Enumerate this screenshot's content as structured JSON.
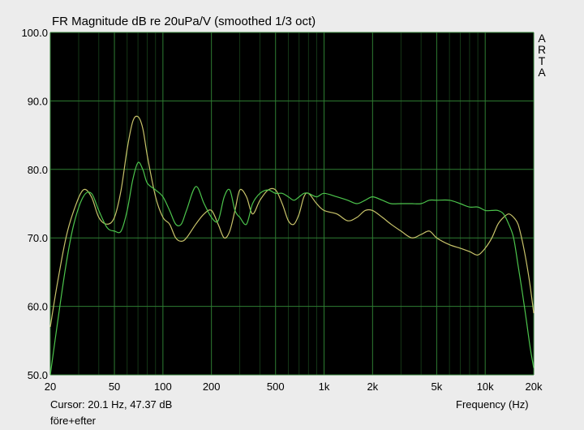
{
  "chart_data": {
    "type": "line",
    "title": "FR Magnitude dB re 20uPa/V (smoothed 1/3 oct)",
    "xlabel": "Frequency (Hz)",
    "ylabel": "",
    "xscale": "log",
    "xlim": [
      20,
      20000
    ],
    "ylim": [
      50,
      100
    ],
    "grid": true,
    "background": "#000000",
    "grid_color": "#2e7d32",
    "y_ticks": [
      {
        "value": 50,
        "label": "50.0"
      },
      {
        "value": 60,
        "label": "60.0"
      },
      {
        "value": 70,
        "label": "70.0"
      },
      {
        "value": 80,
        "label": "80.0"
      },
      {
        "value": 90,
        "label": "90.0"
      },
      {
        "value": 100,
        "label": "100.0"
      }
    ],
    "x_ticks": [
      {
        "value": 20,
        "label": "20"
      },
      {
        "value": 50,
        "label": "50"
      },
      {
        "value": 100,
        "label": "100"
      },
      {
        "value": 200,
        "label": "200"
      },
      {
        "value": 500,
        "label": "500"
      },
      {
        "value": 1000,
        "label": "1k"
      },
      {
        "value": 2000,
        "label": "2k"
      },
      {
        "value": 5000,
        "label": "5k"
      },
      {
        "value": 10000,
        "label": "10k"
      },
      {
        "value": 20000,
        "label": "20k"
      }
    ],
    "series": [
      {
        "color": "#c8c36a",
        "x": [
          20,
          22,
          25,
          28,
          32,
          36,
          40,
          45,
          50,
          55,
          60,
          65,
          70,
          75,
          80,
          90,
          100,
          110,
          120,
          130,
          140,
          160,
          180,
          200,
          220,
          240,
          260,
          280,
          300,
          330,
          360,
          400,
          450,
          500,
          550,
          600,
          650,
          700,
          750,
          800,
          900,
          1000,
          1200,
          1400,
          1600,
          1800,
          2000,
          2300,
          2600,
          3000,
          3500,
          4000,
          4500,
          5000,
          6000,
          7000,
          8000,
          9000,
          10000,
          11000,
          12000,
          13000,
          14000,
          15000,
          16000,
          17000,
          18000,
          19000,
          20000
        ],
        "y": [
          57,
          63,
          70,
          74,
          77,
          76,
          73,
          72,
          73,
          77,
          83,
          87,
          87.7,
          86,
          82,
          76,
          73,
          72,
          70,
          69.5,
          70,
          72,
          73.5,
          74,
          72,
          70,
          71,
          74,
          77,
          76,
          73.5,
          75.5,
          77,
          77,
          75,
          72.5,
          72,
          73.5,
          76,
          76.5,
          75,
          74,
          73.5,
          72.5,
          73,
          74,
          74,
          73,
          72,
          71,
          70,
          70.5,
          71,
          70,
          69,
          68.5,
          68,
          67.5,
          68.5,
          70,
          72,
          73,
          73.5,
          73,
          72,
          69.5,
          66.5,
          63,
          59
        ]
      },
      {
        "color": "#4cc44c",
        "x": [
          20,
          22,
          25,
          28,
          32,
          36,
          40,
          45,
          50,
          55,
          60,
          65,
          70,
          75,
          80,
          90,
          100,
          110,
          120,
          130,
          140,
          160,
          180,
          200,
          220,
          240,
          260,
          280,
          300,
          330,
          360,
          400,
          450,
          500,
          550,
          600,
          650,
          700,
          750,
          800,
          900,
          1000,
          1200,
          1400,
          1600,
          1800,
          2000,
          2300,
          2600,
          3000,
          3500,
          4000,
          4500,
          5000,
          6000,
          7000,
          8000,
          9000,
          10000,
          11000,
          12000,
          13000,
          14000,
          15000,
          16000,
          17000,
          18000,
          19000,
          20000
        ],
        "y": [
          50,
          57,
          66,
          72,
          76,
          76.5,
          74,
          71.5,
          71,
          71,
          74,
          78.5,
          81,
          80,
          78,
          77,
          76,
          74,
          72,
          72,
          74,
          77.5,
          75,
          73,
          72.5,
          76,
          77,
          74,
          73,
          72,
          75,
          76.5,
          77,
          76.5,
          76.5,
          76,
          75.5,
          76,
          76.5,
          76.5,
          76,
          76.5,
          76,
          75.5,
          75,
          75.5,
          76,
          75.5,
          75,
          75,
          75,
          75,
          75.5,
          75.5,
          75.5,
          75,
          74.5,
          74.5,
          74,
          74,
          74,
          73.5,
          72,
          70,
          66,
          62,
          58,
          54,
          51
        ]
      }
    ]
  },
  "brand_letters": [
    "A",
    "R",
    "T",
    "A"
  ],
  "cursor_readout": "Cursor: 20.1 Hz, 47.37 dB",
  "file_label": "före+efter"
}
